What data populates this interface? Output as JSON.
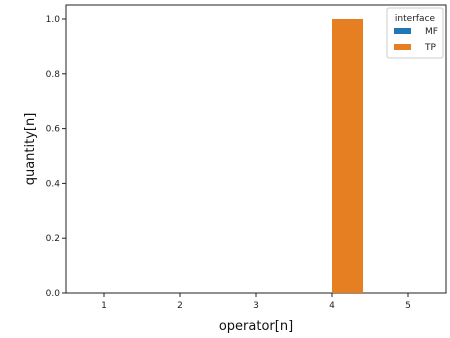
{
  "chart_data": {
    "type": "bar",
    "categories": [
      "1",
      "2",
      "3",
      "4",
      "5"
    ],
    "series": [
      {
        "name": "MF",
        "color": "#1f77b4",
        "values": [
          0,
          0,
          0,
          0,
          0
        ]
      },
      {
        "name": "TP",
        "color": "#e67e22",
        "values": [
          0,
          0,
          0,
          1.0,
          0
        ]
      }
    ],
    "xlabel": "operator[n]",
    "ylabel": "quantity[n]",
    "ylim": [
      0,
      1.0
    ],
    "yticks": [
      "0.0",
      "0.2",
      "0.4",
      "0.6",
      "0.8",
      "1.0"
    ],
    "grid": false,
    "legend": {
      "title": "interface",
      "placement": "top-right"
    }
  }
}
